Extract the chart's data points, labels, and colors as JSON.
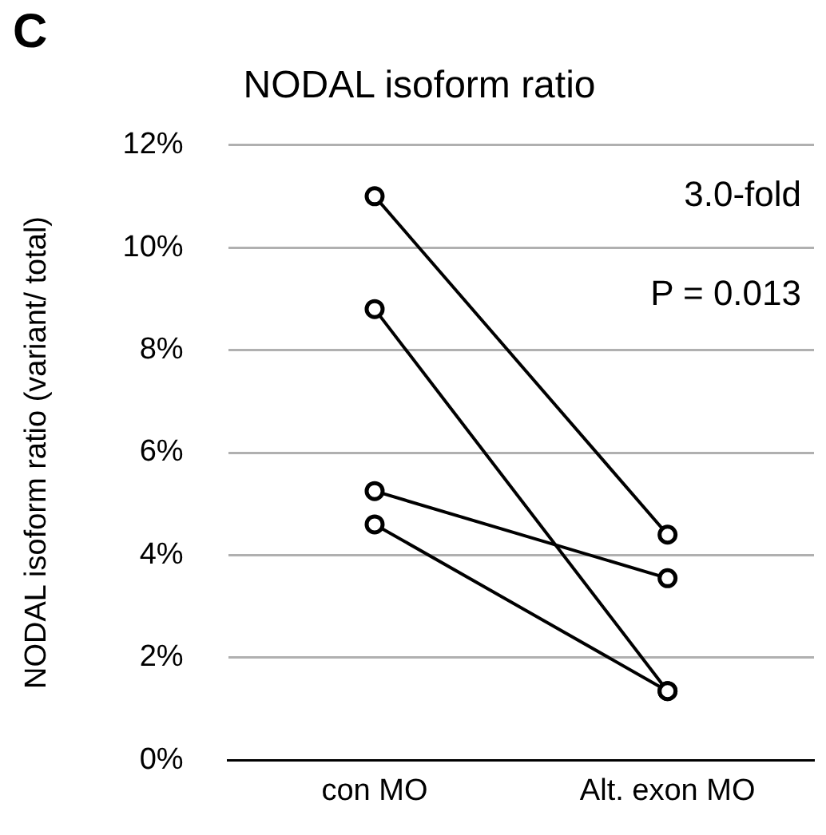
{
  "chart_data": {
    "type": "line",
    "title": "NODAL isoform ratio",
    "ylabel": "NODAL isoform ratio (variant/ total)",
    "categories": [
      "con MO",
      "Alt. exon MO"
    ],
    "series": [
      {
        "color": "#000000",
        "values": [
          11.0,
          4.4
        ]
      },
      {
        "color": "#000000",
        "values": [
          8.8,
          1.35
        ]
      },
      {
        "color": "#000000",
        "values": [
          5.25,
          3.55
        ]
      },
      {
        "color": "#000000",
        "values": [
          4.6,
          1.35
        ]
      }
    ],
    "ylim": [
      0,
      12
    ],
    "yticks": [
      {
        "value": 0,
        "label": "0%"
      },
      {
        "value": 2,
        "label": "2%"
      },
      {
        "value": 4,
        "label": "4%"
      },
      {
        "value": 6,
        "label": "6%"
      },
      {
        "value": 8,
        "label": "8%"
      },
      {
        "value": 10,
        "label": "10%"
      },
      {
        "value": 12,
        "label": "12%"
      }
    ],
    "grid": "y",
    "legend": false,
    "marker": "circle",
    "line_style": "solid",
    "annotations": [
      "C",
      "3.0-fold",
      "P = 0.013"
    ]
  }
}
